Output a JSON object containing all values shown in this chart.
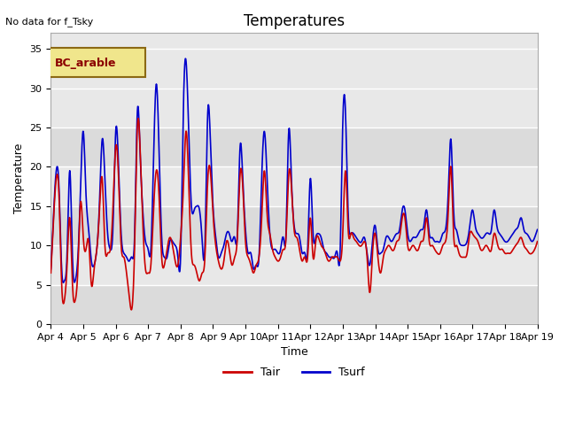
{
  "title": "Temperatures",
  "top_left_text": "No data for f_Tsky",
  "legend_box_text": "BC_arable",
  "legend_box_facecolor": "#f0e68c",
  "legend_box_edgecolor": "#8b6914",
  "xlabel": "Time",
  "ylabel": "Temperature",
  "ylim": [
    0,
    37
  ],
  "xlim_days": [
    0,
    15
  ],
  "x_tick_labels": [
    "Apr 4",
    "Apr 5",
    "Apr 6",
    "Apr 7",
    "Apr 8",
    "Apr 9",
    "Apr 10",
    "Apr 11",
    "Apr 12",
    "Apr 13",
    "Apr 14",
    "Apr 15",
    "Apr 16",
    "Apr 17",
    "Apr 18",
    "Apr 19"
  ],
  "background_color": "#ffffff",
  "plot_bg_color": "#e8e8e8",
  "tair_color": "#cc0000",
  "tsurf_color": "#0000cc",
  "grid_color": "#ffffff",
  "line_width": 1.2,
  "hours_per_day": 24,
  "num_days": 15,
  "tair_key_points": [
    [
      0,
      6.5
    ],
    [
      2,
      13.5
    ],
    [
      4,
      18.5
    ],
    [
      6,
      16.5
    ],
    [
      8,
      5.0
    ],
    [
      10,
      3.0
    ],
    [
      12,
      7.5
    ],
    [
      14,
      13.5
    ],
    [
      16,
      5.0
    ],
    [
      18,
      3.0
    ],
    [
      20,
      7.0
    ],
    [
      22,
      15.5
    ],
    [
      24,
      11.0
    ],
    [
      26,
      9.5
    ],
    [
      28,
      10.5
    ],
    [
      30,
      5.0
    ],
    [
      32,
      7.0
    ],
    [
      34,
      9.5
    ],
    [
      36,
      14.5
    ],
    [
      38,
      18.5
    ],
    [
      40,
      10.0
    ],
    [
      42,
      9.0
    ],
    [
      44,
      9.5
    ],
    [
      46,
      15.0
    ],
    [
      48,
      22.5
    ],
    [
      50,
      19.0
    ],
    [
      52,
      10.0
    ],
    [
      54,
      8.5
    ],
    [
      56,
      6.5
    ],
    [
      58,
      3.5
    ],
    [
      60,
      2.0
    ],
    [
      62,
      10.0
    ],
    [
      64,
      25.0
    ],
    [
      66,
      22.5
    ],
    [
      68,
      13.0
    ],
    [
      70,
      7.0
    ],
    [
      72,
      6.5
    ],
    [
      74,
      7.5
    ],
    [
      76,
      14.5
    ],
    [
      78,
      19.5
    ],
    [
      80,
      16.5
    ],
    [
      82,
      8.5
    ],
    [
      84,
      7.5
    ],
    [
      86,
      9.5
    ],
    [
      88,
      11.0
    ],
    [
      90,
      10.0
    ],
    [
      92,
      8.0
    ],
    [
      94,
      7.5
    ],
    [
      96,
      11.0
    ],
    [
      98,
      17.0
    ],
    [
      100,
      24.5
    ],
    [
      102,
      18.0
    ],
    [
      104,
      9.0
    ],
    [
      106,
      7.5
    ],
    [
      108,
      6.5
    ],
    [
      110,
      5.5
    ],
    [
      112,
      6.5
    ],
    [
      114,
      8.5
    ],
    [
      116,
      18.0
    ],
    [
      118,
      19.5
    ],
    [
      120,
      14.0
    ],
    [
      122,
      10.0
    ],
    [
      124,
      8.0
    ],
    [
      126,
      7.0
    ],
    [
      128,
      8.0
    ],
    [
      130,
      10.5
    ],
    [
      132,
      9.5
    ],
    [
      134,
      7.5
    ],
    [
      136,
      8.5
    ],
    [
      138,
      11.0
    ],
    [
      140,
      19.0
    ],
    [
      142,
      17.5
    ],
    [
      144,
      10.5
    ],
    [
      146,
      8.5
    ],
    [
      148,
      7.5
    ],
    [
      150,
      6.5
    ],
    [
      152,
      7.5
    ],
    [
      154,
      8.5
    ],
    [
      156,
      13.5
    ],
    [
      158,
      19.5
    ],
    [
      160,
      14.0
    ],
    [
      162,
      11.5
    ],
    [
      164,
      9.5
    ],
    [
      166,
      8.5
    ],
    [
      168,
      8.0
    ],
    [
      170,
      8.5
    ],
    [
      172,
      9.5
    ],
    [
      174,
      11.0
    ],
    [
      176,
      19.0
    ],
    [
      178,
      17.5
    ],
    [
      180,
      12.0
    ],
    [
      182,
      11.0
    ],
    [
      184,
      9.5
    ],
    [
      186,
      8.0
    ],
    [
      188,
      8.5
    ],
    [
      190,
      8.5
    ],
    [
      192,
      13.5
    ],
    [
      194,
      8.5
    ],
    [
      196,
      10.5
    ],
    [
      198,
      11.0
    ],
    [
      200,
      10.0
    ],
    [
      202,
      9.5
    ],
    [
      204,
      8.5
    ],
    [
      206,
      8.0
    ],
    [
      208,
      8.5
    ],
    [
      210,
      8.5
    ],
    [
      212,
      8.5
    ],
    [
      214,
      8.0
    ],
    [
      216,
      11.5
    ],
    [
      218,
      19.5
    ],
    [
      220,
      12.0
    ],
    [
      222,
      11.5
    ],
    [
      224,
      11.0
    ],
    [
      226,
      10.5
    ],
    [
      228,
      10.0
    ],
    [
      230,
      10.0
    ],
    [
      232,
      10.5
    ],
    [
      234,
      8.5
    ],
    [
      236,
      4.0
    ],
    [
      238,
      9.0
    ],
    [
      240,
      11.5
    ],
    [
      242,
      8.5
    ],
    [
      244,
      6.5
    ],
    [
      246,
      8.5
    ],
    [
      248,
      9.5
    ],
    [
      250,
      10.0
    ],
    [
      252,
      9.5
    ],
    [
      254,
      9.5
    ],
    [
      256,
      10.5
    ],
    [
      258,
      11.0
    ],
    [
      260,
      13.5
    ],
    [
      262,
      13.5
    ],
    [
      264,
      10.0
    ],
    [
      266,
      9.5
    ],
    [
      268,
      10.0
    ],
    [
      270,
      9.5
    ],
    [
      272,
      9.5
    ],
    [
      274,
      10.5
    ],
    [
      276,
      11.0
    ],
    [
      278,
      13.5
    ],
    [
      280,
      10.5
    ],
    [
      282,
      10.0
    ],
    [
      284,
      9.5
    ],
    [
      286,
      9.0
    ],
    [
      288,
      9.0
    ],
    [
      290,
      10.0
    ],
    [
      292,
      10.5
    ],
    [
      294,
      14.0
    ],
    [
      296,
      20.0
    ],
    [
      298,
      11.5
    ],
    [
      300,
      10.0
    ],
    [
      302,
      9.0
    ],
    [
      304,
      8.5
    ],
    [
      306,
      8.5
    ],
    [
      308,
      9.0
    ],
    [
      310,
      11.5
    ],
    [
      312,
      11.5
    ],
    [
      314,
      11.0
    ],
    [
      316,
      10.5
    ],
    [
      318,
      9.5
    ],
    [
      320,
      9.5
    ],
    [
      322,
      10.0
    ],
    [
      324,
      9.5
    ],
    [
      326,
      9.5
    ],
    [
      328,
      11.5
    ],
    [
      330,
      10.5
    ],
    [
      332,
      9.5
    ],
    [
      334,
      9.5
    ],
    [
      336,
      9.0
    ],
    [
      338,
      9.0
    ],
    [
      340,
      9.0
    ],
    [
      342,
      9.5
    ],
    [
      344,
      10.0
    ],
    [
      346,
      10.5
    ],
    [
      348,
      11.0
    ],
    [
      350,
      10.0
    ],
    [
      352,
      9.5
    ],
    [
      354,
      9.0
    ],
    [
      356,
      9.0
    ],
    [
      358,
      9.5
    ],
    [
      360,
      10.5
    ]
  ],
  "tsurf_key_points": [
    [
      0,
      7.0
    ],
    [
      2,
      14.0
    ],
    [
      4,
      19.5
    ],
    [
      6,
      17.5
    ],
    [
      8,
      7.0
    ],
    [
      10,
      5.5
    ],
    [
      12,
      9.0
    ],
    [
      14,
      19.5
    ],
    [
      16,
      8.5
    ],
    [
      18,
      5.5
    ],
    [
      20,
      8.5
    ],
    [
      22,
      17.5
    ],
    [
      24,
      24.5
    ],
    [
      26,
      16.5
    ],
    [
      28,
      12.0
    ],
    [
      30,
      8.0
    ],
    [
      32,
      7.5
    ],
    [
      34,
      9.5
    ],
    [
      36,
      15.5
    ],
    [
      38,
      23.5
    ],
    [
      40,
      18.5
    ],
    [
      42,
      11.5
    ],
    [
      44,
      9.5
    ],
    [
      46,
      12.5
    ],
    [
      48,
      24.5
    ],
    [
      50,
      20.5
    ],
    [
      52,
      11.5
    ],
    [
      54,
      9.0
    ],
    [
      56,
      8.5
    ],
    [
      58,
      8.0
    ],
    [
      60,
      8.5
    ],
    [
      62,
      11.5
    ],
    [
      64,
      27.0
    ],
    [
      66,
      22.0
    ],
    [
      68,
      14.5
    ],
    [
      70,
      10.5
    ],
    [
      72,
      9.5
    ],
    [
      74,
      9.5
    ],
    [
      76,
      21.0
    ],
    [
      78,
      30.5
    ],
    [
      80,
      22.5
    ],
    [
      82,
      11.0
    ],
    [
      84,
      8.5
    ],
    [
      86,
      8.5
    ],
    [
      88,
      10.5
    ],
    [
      90,
      10.5
    ],
    [
      92,
      10.0
    ],
    [
      94,
      8.5
    ],
    [
      96,
      8.5
    ],
    [
      98,
      27.0
    ],
    [
      100,
      33.5
    ],
    [
      102,
      24.5
    ],
    [
      104,
      15.0
    ],
    [
      106,
      14.5
    ],
    [
      108,
      15.0
    ],
    [
      110,
      14.5
    ],
    [
      112,
      10.5
    ],
    [
      114,
      10.0
    ],
    [
      116,
      26.5
    ],
    [
      118,
      23.5
    ],
    [
      120,
      15.0
    ],
    [
      122,
      11.0
    ],
    [
      124,
      8.5
    ],
    [
      126,
      9.0
    ],
    [
      128,
      10.0
    ],
    [
      130,
      11.5
    ],
    [
      132,
      11.5
    ],
    [
      134,
      10.5
    ],
    [
      136,
      11.0
    ],
    [
      138,
      11.5
    ],
    [
      140,
      22.5
    ],
    [
      142,
      18.5
    ],
    [
      144,
      12.0
    ],
    [
      146,
      9.0
    ],
    [
      148,
      9.0
    ],
    [
      150,
      7.0
    ],
    [
      152,
      7.5
    ],
    [
      154,
      8.5
    ],
    [
      156,
      18.5
    ],
    [
      158,
      24.5
    ],
    [
      160,
      18.5
    ],
    [
      162,
      11.5
    ],
    [
      164,
      9.5
    ],
    [
      166,
      9.5
    ],
    [
      168,
      9.0
    ],
    [
      170,
      9.5
    ],
    [
      172,
      11.0
    ],
    [
      174,
      11.5
    ],
    [
      176,
      24.5
    ],
    [
      178,
      18.5
    ],
    [
      180,
      12.5
    ],
    [
      182,
      11.5
    ],
    [
      184,
      11.0
    ],
    [
      186,
      9.0
    ],
    [
      188,
      9.0
    ],
    [
      190,
      9.5
    ],
    [
      192,
      18.5
    ],
    [
      194,
      11.5
    ],
    [
      196,
      11.0
    ],
    [
      198,
      11.5
    ],
    [
      200,
      11.0
    ],
    [
      202,
      9.5
    ],
    [
      204,
      9.0
    ],
    [
      206,
      8.5
    ],
    [
      208,
      8.5
    ],
    [
      210,
      8.5
    ],
    [
      212,
      9.0
    ],
    [
      214,
      9.0
    ],
    [
      216,
      25.5
    ],
    [
      218,
      27.0
    ],
    [
      220,
      14.0
    ],
    [
      222,
      11.5
    ],
    [
      224,
      11.5
    ],
    [
      226,
      11.0
    ],
    [
      228,
      10.5
    ],
    [
      230,
      10.5
    ],
    [
      232,
      11.0
    ],
    [
      234,
      9.0
    ],
    [
      236,
      7.5
    ],
    [
      238,
      10.5
    ],
    [
      240,
      12.5
    ],
    [
      242,
      9.5
    ],
    [
      244,
      9.0
    ],
    [
      246,
      9.5
    ],
    [
      248,
      11.0
    ],
    [
      250,
      11.0
    ],
    [
      252,
      10.5
    ],
    [
      254,
      11.0
    ],
    [
      256,
      11.5
    ],
    [
      258,
      12.0
    ],
    [
      260,
      14.5
    ],
    [
      262,
      14.5
    ],
    [
      264,
      11.5
    ],
    [
      266,
      10.5
    ],
    [
      268,
      11.0
    ],
    [
      270,
      11.0
    ],
    [
      272,
      11.5
    ],
    [
      274,
      12.0
    ],
    [
      276,
      12.5
    ],
    [
      278,
      14.5
    ],
    [
      280,
      11.5
    ],
    [
      282,
      11.0
    ],
    [
      284,
      10.5
    ],
    [
      286,
      10.5
    ],
    [
      288,
      10.5
    ],
    [
      290,
      11.5
    ],
    [
      292,
      12.0
    ],
    [
      294,
      16.5
    ],
    [
      296,
      23.5
    ],
    [
      298,
      14.5
    ],
    [
      300,
      12.0
    ],
    [
      302,
      10.5
    ],
    [
      304,
      10.0
    ],
    [
      306,
      10.0
    ],
    [
      308,
      10.5
    ],
    [
      310,
      12.5
    ],
    [
      312,
      14.5
    ],
    [
      314,
      12.5
    ],
    [
      316,
      11.5
    ],
    [
      318,
      11.0
    ],
    [
      320,
      11.0
    ],
    [
      322,
      11.5
    ],
    [
      324,
      11.5
    ],
    [
      326,
      12.0
    ],
    [
      328,
      14.5
    ],
    [
      330,
      12.5
    ],
    [
      332,
      11.5
    ],
    [
      334,
      11.0
    ],
    [
      336,
      10.5
    ],
    [
      338,
      10.5
    ],
    [
      340,
      11.0
    ],
    [
      342,
      11.5
    ],
    [
      344,
      12.0
    ],
    [
      346,
      12.5
    ],
    [
      348,
      13.5
    ],
    [
      350,
      12.0
    ],
    [
      352,
      11.5
    ],
    [
      354,
      11.0
    ],
    [
      356,
      10.5
    ],
    [
      358,
      11.0
    ],
    [
      360,
      12.0
    ]
  ]
}
